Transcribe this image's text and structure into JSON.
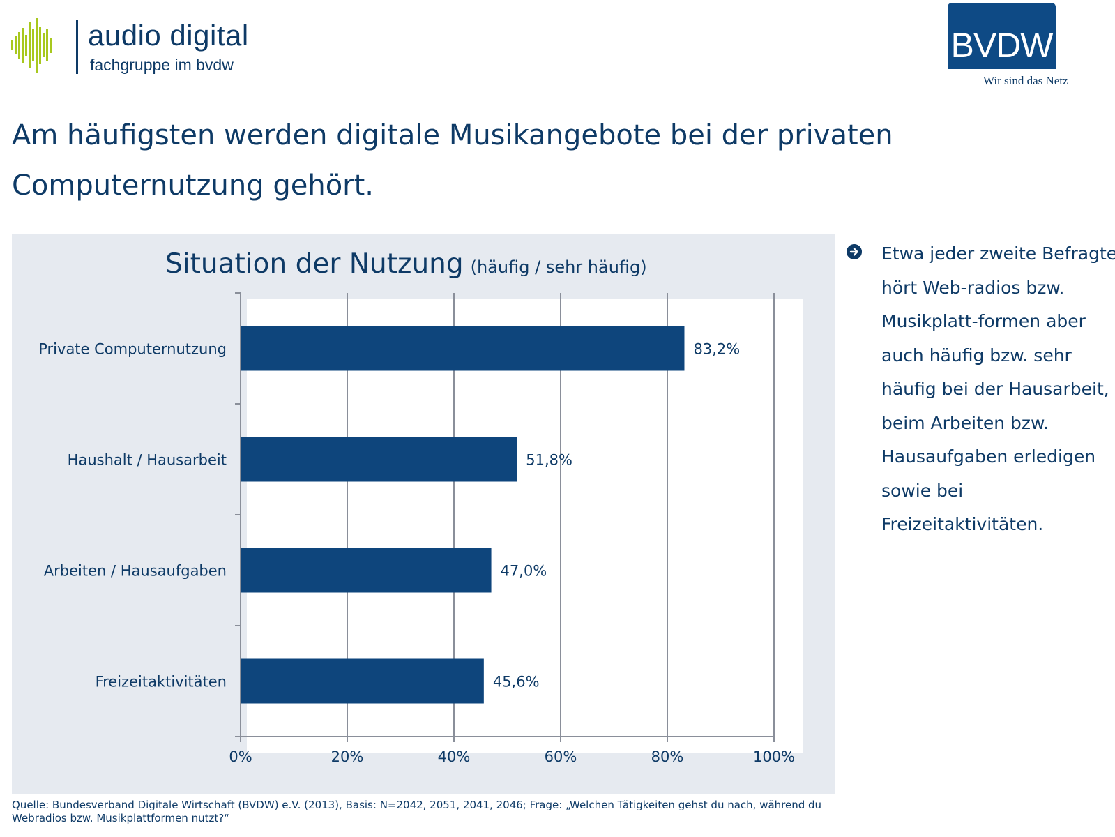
{
  "logos": {
    "audio_digital": {
      "name": "audio digital",
      "sub": "fachgruppe im bvdw"
    },
    "bvdw": {
      "name": "BVDW",
      "slogan": "Wir sind das Netz"
    }
  },
  "headline": "Am häufigsten werden digitale Musikangebote bei der privaten Computernutzung gehört.",
  "colors": {
    "bar": "#0e457c",
    "text": "#0e3a66",
    "panel": "#e6eaf0",
    "accent_wave": "#a8c81e"
  },
  "chart_data": {
    "type": "bar",
    "orientation": "horizontal",
    "title": "Situation der Nutzung",
    "subtitle": "(häufig / sehr häufig)",
    "categories": [
      "Private Computernutzung",
      "Haushalt / Hausarbeit",
      "Arbeiten / Hausaufgaben",
      "Freizeitaktivitäten"
    ],
    "values": [
      83.2,
      51.8,
      47.0,
      45.6
    ],
    "value_labels": [
      "83,2%",
      "51,8%",
      "47,0%",
      "45,6%"
    ],
    "xlim": [
      0,
      100
    ],
    "xticks": [
      "0%",
      "20%",
      "40%",
      "60%",
      "80%",
      "100%"
    ],
    "grid": true,
    "legend": "none"
  },
  "bullet": {
    "icon": "arrow-right-circle-icon",
    "text": "Etwa jeder zweite Befragte hört Web-radios bzw. Musikplatt-formen aber auch häufig bzw. sehr häufig bei der Hausarbeit, beim Arbeiten bzw. Hausaufgaben erledigen sowie bei Freizeitaktivitäten."
  },
  "source": "Quelle: Bundesverband Digitale Wirtschaft (BVDW) e.V. (2013), Basis: N=2042, 2051, 2041, 2046;  Frage: „Welchen Tätigkeiten gehst du nach, während du Webradios bzw. Musikplattformen nutzt?“"
}
